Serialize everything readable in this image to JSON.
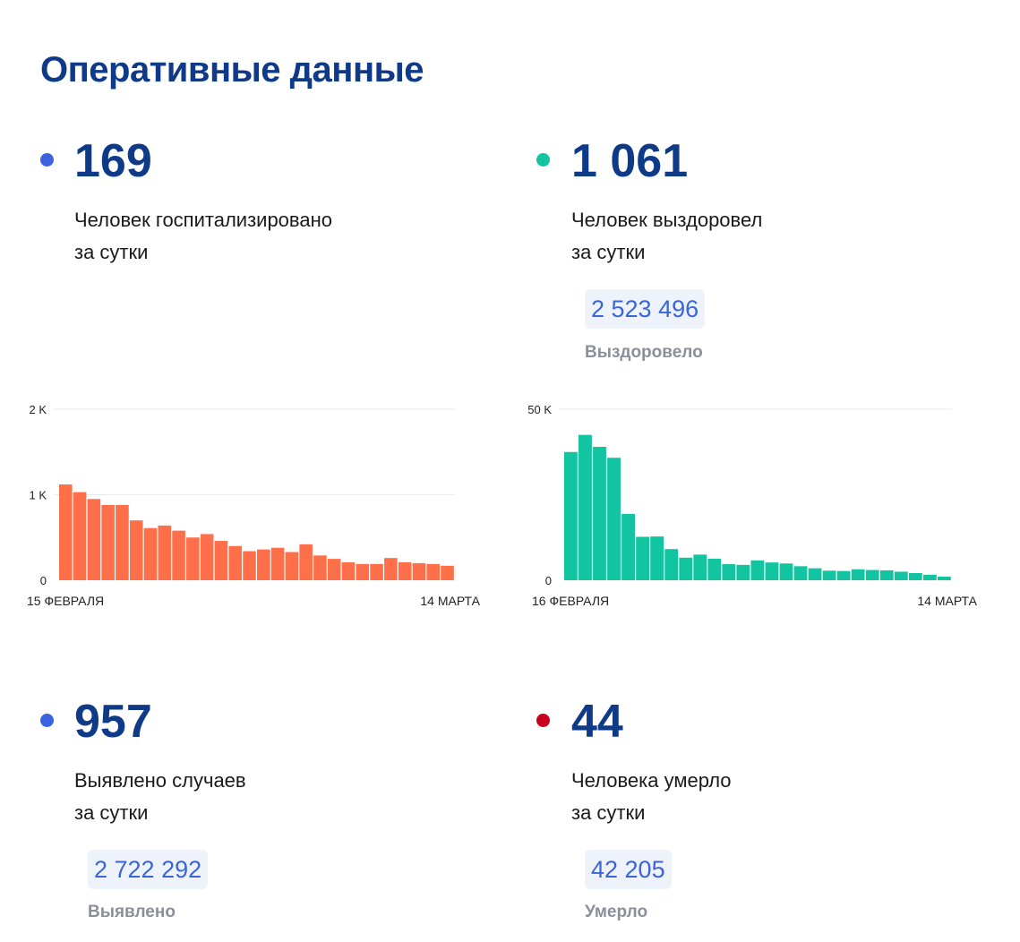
{
  "title": "Оперативные данные",
  "colors": {
    "title": "#0f3a87",
    "hospitalized_dot": "#3b63e0",
    "recovered_dot": "#12c4a0",
    "cases_dot": "#3b63e0",
    "deaths_dot": "#c8001e",
    "hospitalized_bars": "#ff6f4a",
    "recovered_bars": "#12c4a0"
  },
  "stats": {
    "hospitalized": {
      "value": "169",
      "desc_line1": "Человек госпитализировано",
      "desc_line2": "за сутки"
    },
    "recovered": {
      "value": "1 061",
      "desc_line1": "Человек выздоровел",
      "desc_line2": "за сутки",
      "total": "2 523 496",
      "total_label": "Выздоровело"
    },
    "cases": {
      "value": "957",
      "desc_line1": "Выявлено случаев",
      "desc_line2": "за сутки",
      "total": "2 722 292",
      "total_label": "Выявлено"
    },
    "deaths": {
      "value": "44",
      "desc_line1": "Человека умерло",
      "desc_line2": "за сутки",
      "total": "42 205",
      "total_label": "Умерло"
    }
  },
  "chart_data": [
    {
      "type": "bar",
      "series_key": "hospitalized",
      "x_start_label": "15 ФЕВРАЛЯ",
      "x_end_label": "14 МАРТА",
      "y_ticks": [
        {
          "value": 2000,
          "label": "2 K"
        },
        {
          "value": 1000,
          "label": "1 K"
        },
        {
          "value": 0,
          "label": "0"
        }
      ],
      "ylim": [
        0,
        2000
      ],
      "grid": true,
      "values": [
        1120,
        1030,
        950,
        880,
        880,
        700,
        610,
        640,
        580,
        500,
        540,
        460,
        400,
        340,
        360,
        380,
        330,
        420,
        290,
        250,
        210,
        190,
        190,
        260,
        210,
        200,
        190,
        169
      ]
    },
    {
      "type": "bar",
      "series_key": "recovered",
      "x_start_label": "16 ФЕВРАЛЯ",
      "x_end_label": "14 МАРТА",
      "y_ticks": [
        {
          "value": 50000,
          "label": "50 K"
        },
        {
          "value": 0,
          "label": "0"
        }
      ],
      "ylim": [
        0,
        50000
      ],
      "grid": true,
      "values": [
        37500,
        42500,
        39000,
        35800,
        19400,
        12700,
        12800,
        9100,
        6600,
        7500,
        6300,
        4700,
        4500,
        5800,
        5200,
        4900,
        4100,
        3500,
        2800,
        2700,
        3200,
        3000,
        2900,
        2500,
        2100,
        1600,
        1061
      ]
    }
  ]
}
